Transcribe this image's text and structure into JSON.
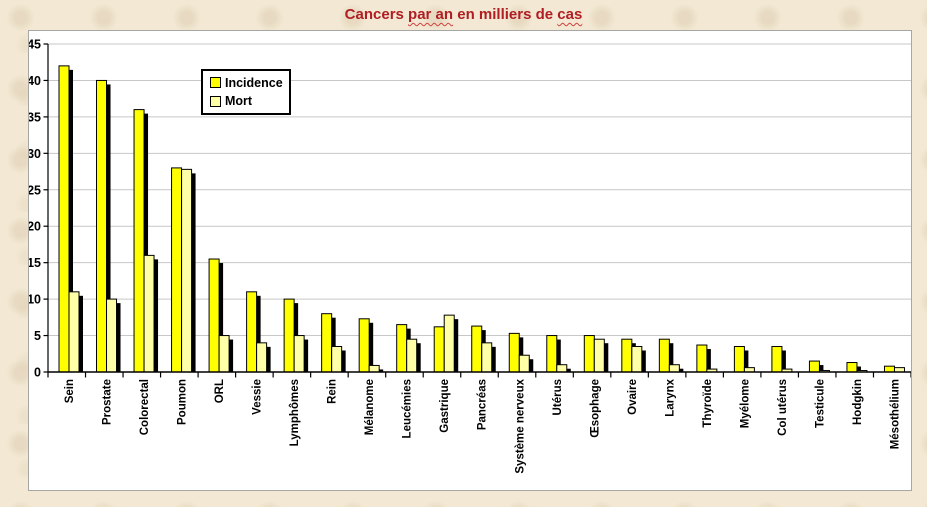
{
  "title": {
    "part1": "Cancers ",
    "part2": "par an",
    "part3": " en milliers de ",
    "part4": "cas",
    "full": "Cancers par an en milliers de cas",
    "color": "#b01e23"
  },
  "colors": {
    "page_background": "#f2e8d3",
    "plot_background": "#ffffff",
    "gridline": "#c7c7c7",
    "axis": "#000000",
    "bar_shadow": "#000000",
    "incidence": "#ffff00",
    "mort": "#ffffa8"
  },
  "chart_data": {
    "type": "bar",
    "title": "Cancers par an en milliers de cas",
    "xlabel": "",
    "ylabel": "",
    "ylim": [
      0,
      45
    ],
    "yticks": [
      0,
      5,
      10,
      15,
      20,
      25,
      30,
      35,
      40,
      45
    ],
    "grid": true,
    "legend_position": "inside-top-left",
    "bar_shadow": true,
    "categories": [
      "Sein",
      "Prostate",
      "Colorectal",
      "Poumon",
      "ORL",
      "Vessie",
      "Lymphômes",
      "Rein",
      "Mélanome",
      "Leucémies",
      "Gastrique",
      "Pancréas",
      "Système nerveux",
      "Utérus",
      "Œsophage",
      "Ovaire",
      "Larynx",
      "Thyroïde",
      "Myélome",
      "Col utérus",
      "Testicule",
      "Hodgkin",
      "Mésothélium"
    ],
    "series": [
      {
        "name": "Incidence",
        "color": "#ffff00",
        "values": [
          42,
          40,
          36,
          28,
          15.5,
          11,
          10,
          8,
          7.3,
          6.5,
          6.2,
          6.3,
          5.3,
          5,
          5,
          4.5,
          4.5,
          3.7,
          3.5,
          3.5,
          1.5,
          1.3,
          0.8
        ]
      },
      {
        "name": "Mort",
        "color": "#ffffa8",
        "values": [
          11,
          10,
          16,
          27.8,
          5,
          4,
          5,
          3.5,
          0.9,
          4.5,
          7.8,
          4,
          2.3,
          1,
          4.5,
          3.5,
          1,
          0.4,
          0.6,
          0.4,
          0.2,
          0.2,
          0.6
        ]
      }
    ]
  }
}
